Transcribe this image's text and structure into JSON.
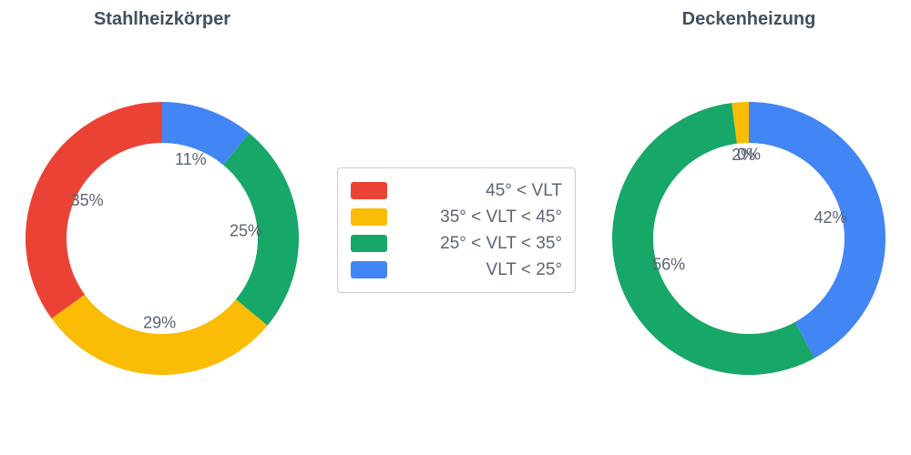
{
  "page": {
    "background_color": "#ffffff",
    "title_color": "#42505f",
    "label_color": "#5a6472"
  },
  "legend": {
    "items": [
      {
        "label": "45° < VLT",
        "color": "#EA4335"
      },
      {
        "label": "35° < VLT < 45°",
        "color": "#FBBC05"
      },
      {
        "label": "25° < VLT < 35°",
        "color": "#17A768"
      },
      {
        "label": "VLT < 25°",
        "color": "#4285F4"
      }
    ]
  },
  "chart_data": [
    {
      "type": "pie",
      "variant": "donut",
      "title": "Stahlheizkörper",
      "categories": [
        "45° < VLT",
        "35° < VLT < 45°",
        "25° < VLT < 35°",
        "VLT < 25°"
      ],
      "values": [
        35,
        29,
        25,
        11
      ],
      "value_labels": [
        "35%",
        "29%",
        "25%",
        "11%"
      ],
      "colors": [
        "#EA4335",
        "#FBBC05",
        "#17A768",
        "#4285F4"
      ],
      "unit": "%",
      "hole": 0.7,
      "start_angle_deg": -90,
      "direction": "counterclockwise",
      "labels_inside": true,
      "legend_position": "center-between-charts"
    },
    {
      "type": "pie",
      "variant": "donut",
      "title": "Deckenheizung",
      "categories": [
        "45° < VLT",
        "35° < VLT < 45°",
        "25° < VLT < 35°",
        "VLT < 25°"
      ],
      "values": [
        0,
        2,
        56,
        42
      ],
      "value_labels": [
        "0%",
        "2%",
        "56%",
        "42%"
      ],
      "colors": [
        "#EA4335",
        "#FBBC05",
        "#17A768",
        "#4285F4"
      ],
      "unit": "%",
      "hole": 0.7,
      "start_angle_deg": -90,
      "direction": "counterclockwise",
      "labels_inside": true,
      "legend_position": "center-between-charts"
    }
  ]
}
